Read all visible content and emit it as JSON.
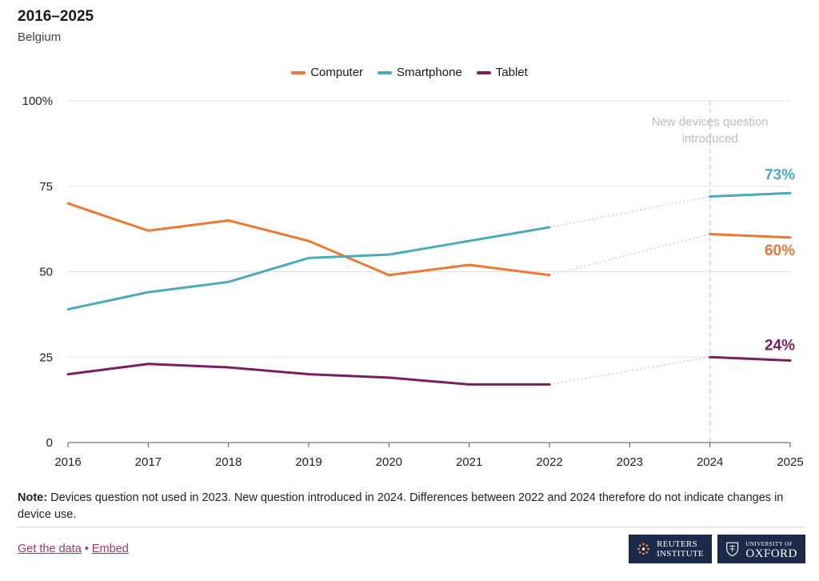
{
  "header": {
    "title": "2016–2025",
    "subtitle": "Belgium"
  },
  "chart_data": {
    "type": "line",
    "title": "2016–2025",
    "subtitle": "Belgium",
    "categories": [
      "2016",
      "2017",
      "2018",
      "2019",
      "2020",
      "2021",
      "2022",
      "2023",
      "2024",
      "2025"
    ],
    "ylim": [
      0,
      100
    ],
    "yticks": [
      0,
      25,
      50,
      75,
      100
    ],
    "ytick_labels": [
      "0",
      "25",
      "50",
      "75",
      "100%"
    ],
    "grid": true,
    "legend_position": "top-center",
    "annotation": {
      "text_line1": "New devices question",
      "text_line2": "introduced",
      "at": "2024"
    },
    "series": [
      {
        "name": "Computer",
        "color": "#ee7733",
        "end_label": "60%",
        "values": [
          70,
          62,
          65,
          59,
          49,
          52,
          49,
          null,
          61,
          60
        ]
      },
      {
        "name": "Smartphone",
        "color": "#4aabbc",
        "end_label": "73%",
        "values": [
          39,
          44,
          47,
          54,
          55,
          59,
          63,
          null,
          72,
          73
        ]
      },
      {
        "name": "Tablet",
        "color": "#7a1e5c",
        "end_label": "24%",
        "values": [
          20,
          23,
          22,
          20,
          19,
          17,
          17,
          null,
          25,
          24
        ]
      }
    ]
  },
  "note": {
    "label": "Note:",
    "text": " Devices question not used in 2023. New question introduced in 2024. Differences between 2022 and 2024 therefore do not indicate changes in device use."
  },
  "links": {
    "get_data": "Get the data",
    "separator": "•",
    "embed": "Embed"
  },
  "logos": {
    "reuters_line1": "REUTERS",
    "reuters_line2": "INSTITUTE",
    "oxford_line1": "UNIVERSITY OF",
    "oxford_line2": "OXFORD"
  }
}
